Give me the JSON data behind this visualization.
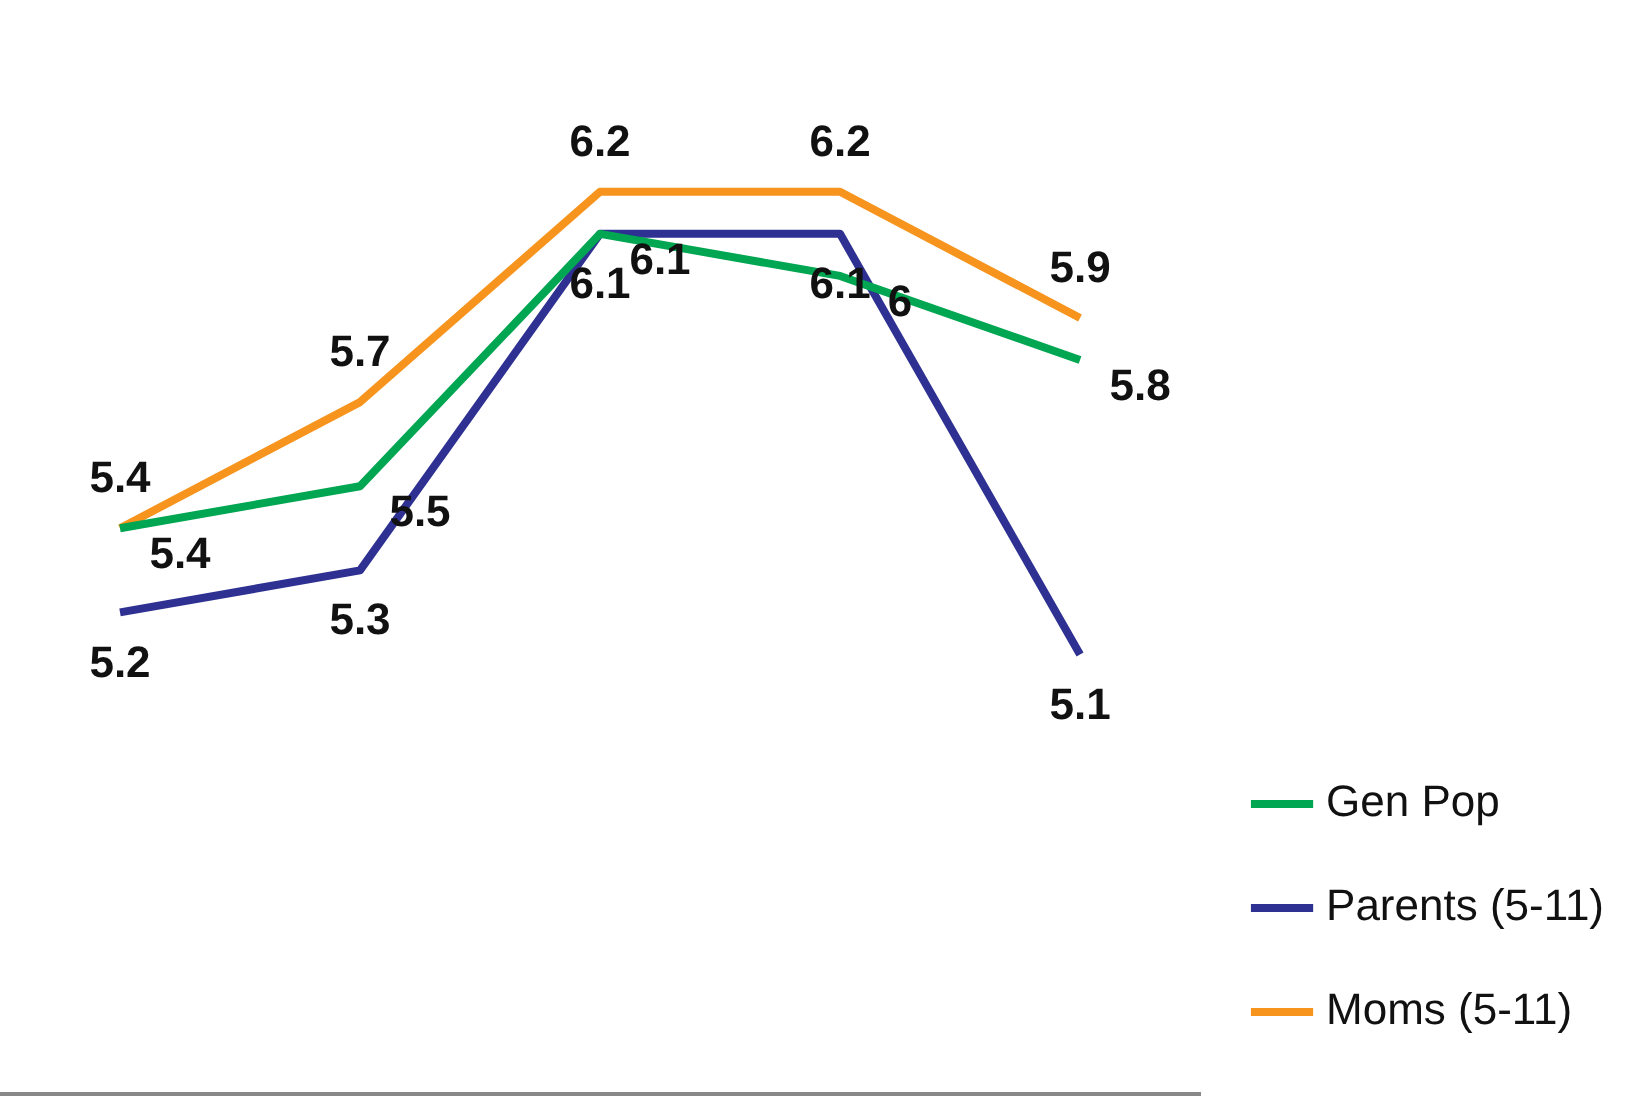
{
  "chart_data": {
    "type": "line",
    "categories": [
      null,
      null,
      null,
      null,
      null
    ],
    "series": [
      {
        "name": "Gen Pop",
        "color": "#00a651",
        "values": [
          5.4,
          5.5,
          6.1,
          6,
          5.8
        ]
      },
      {
        "name": "Parents (5-11)",
        "color": "#2e3192",
        "values": [
          5.2,
          5.3,
          6.1,
          6.1,
          5.1
        ]
      },
      {
        "name": "Moms (5-11)",
        "color": "#f7941d",
        "values": [
          5.4,
          5.7,
          6.2,
          6.2,
          5.9
        ]
      }
    ],
    "relative": false,
    "data_labels": true,
    "legend": "bottom right",
    "marker": "none",
    "line_style": "solid",
    "tick_labels": false,
    "grid": false
  }
}
